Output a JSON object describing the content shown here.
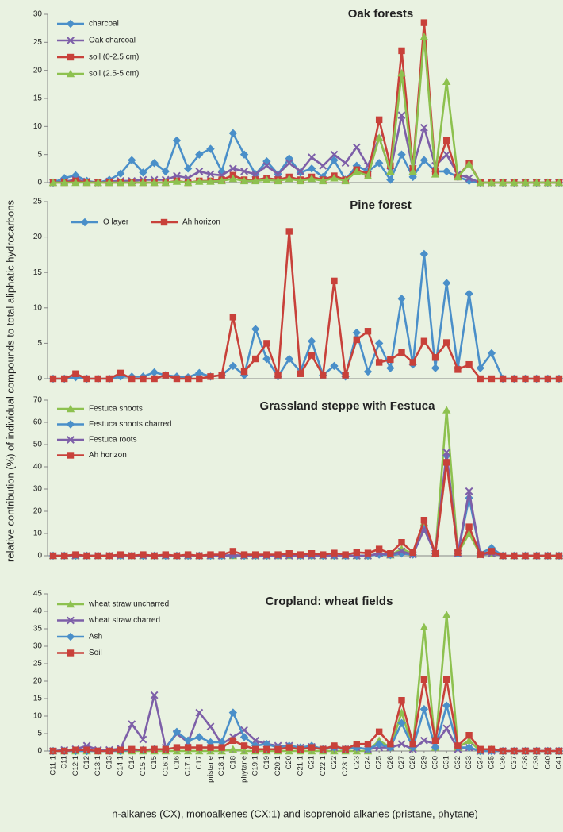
{
  "chart_data": [
    {
      "type": "line",
      "title": "Oak forests",
      "ylabel": "relative contribution (%) of individual compounds to total aliphatic hydrocarbons",
      "ylim": [
        0,
        30
      ],
      "yticks": [
        0,
        5,
        10,
        15,
        20,
        25,
        30
      ],
      "legend": "upper left",
      "series": [
        {
          "name": "charcoal",
          "color": "#4a8fc9",
          "marker": "diamond",
          "values": [
            0,
            0.8,
            1.3,
            0.3,
            0,
            0.5,
            1.6,
            4,
            1.8,
            3.5,
            2,
            7.5,
            2.5,
            5,
            6,
            2,
            8.8,
            5,
            1.5,
            3.8,
            1.5,
            4.3,
            1.8,
            2.5,
            1,
            4,
            0.5,
            3,
            2,
            3.5,
            0.5,
            5,
            1,
            4,
            2,
            2,
            1,
            0.3,
            0,
            0,
            0,
            0,
            0,
            0,
            0,
            0
          ]
        },
        {
          "name": "Oak charcoal",
          "color": "#7d5fa8",
          "marker": "x",
          "values": [
            0,
            0.2,
            0.5,
            0.2,
            0,
            0.2,
            0.3,
            0.3,
            0.5,
            0.5,
            0.5,
            1.2,
            0.8,
            2,
            1.5,
            1.3,
            2.5,
            2,
            1.5,
            3,
            1.5,
            3.5,
            2,
            4.5,
            3,
            5,
            3.5,
            6.3,
            3,
            8,
            2,
            12,
            2.5,
            9.8,
            3,
            5,
            1.5,
            0.8,
            0,
            0,
            0,
            0,
            0,
            0,
            0,
            0
          ]
        },
        {
          "name": "soil (0-2.5 cm)",
          "color": "#c8413a",
          "marker": "square",
          "values": [
            0,
            0,
            0.3,
            0,
            0,
            0,
            0,
            0,
            0,
            0,
            0,
            0.3,
            0,
            0.3,
            0.3,
            0.5,
            1.3,
            0.5,
            0.5,
            0.8,
            0.5,
            1,
            0.5,
            1,
            0.5,
            1.2,
            0.5,
            2.3,
            1.5,
            11.2,
            3,
            23.5,
            2.5,
            28.5,
            2,
            7.5,
            1,
            3.5,
            0,
            0,
            0,
            0,
            0,
            0,
            0,
            0
          ]
        },
        {
          "name": "soil (2.5-5 cm)",
          "color": "#8dc14f",
          "marker": "triangle",
          "values": [
            0,
            0,
            0,
            0,
            0,
            0,
            0,
            0,
            0,
            0,
            0,
            0.2,
            0,
            0.2,
            0.2,
            0.3,
            0.7,
            0.3,
            0.3,
            0.5,
            0.3,
            0.7,
            0.3,
            0.7,
            0.3,
            0.8,
            0.3,
            2,
            1.2,
            8,
            2,
            19.5,
            2,
            26,
            1.5,
            18,
            1,
            3.3,
            0,
            0,
            0,
            0,
            0,
            0,
            0,
            0
          ]
        }
      ]
    },
    {
      "type": "line",
      "title": "Pine forest",
      "ylim": [
        0,
        25
      ],
      "yticks": [
        0,
        5,
        10,
        15,
        20,
        25
      ],
      "legend": "upper left",
      "series": [
        {
          "name": "O layer",
          "color": "#4a8fc9",
          "marker": "diamond",
          "values": [
            0,
            0,
            0.2,
            0,
            0,
            0,
            0.3,
            0.3,
            0.3,
            0.9,
            0.5,
            0.3,
            0.2,
            0.8,
            0.3,
            0.5,
            1.8,
            0.5,
            7,
            2.8,
            0.3,
            2.8,
            1,
            5.3,
            0.5,
            1.8,
            0.3,
            6.5,
            1,
            5,
            1.5,
            11.3,
            2,
            17.6,
            1.5,
            13.5,
            1.5,
            12,
            1.5,
            3.6,
            0,
            0,
            0,
            0,
            0,
            0
          ]
        },
        {
          "name": "Ah horizon",
          "color": "#c8413a",
          "marker": "square",
          "values": [
            0,
            0,
            0.7,
            0,
            0,
            0,
            0.8,
            0,
            0,
            0,
            0.5,
            0,
            0,
            0,
            0.3,
            0.5,
            8.7,
            1,
            2.8,
            5,
            0.5,
            20.8,
            0.7,
            3.3,
            0.5,
            13.8,
            0.5,
            5.5,
            6.7,
            2.3,
            2.7,
            3.7,
            2.3,
            5.3,
            3,
            5.1,
            1.3,
            2,
            0,
            0,
            0,
            0,
            0,
            0,
            0,
            0
          ]
        }
      ]
    },
    {
      "type": "line",
      "title": "Grassland steppe with Festuca",
      "ylim": [
        0,
        70
      ],
      "yticks": [
        0,
        10,
        20,
        30,
        40,
        50,
        60,
        70
      ],
      "legend": "upper left",
      "series": [
        {
          "name": "Festuca shoots",
          "color": "#8dc14f",
          "marker": "triangle",
          "values": [
            0,
            0,
            0,
            0,
            0,
            0,
            0,
            0,
            0,
            0,
            0,
            0,
            0,
            0,
            0,
            0,
            0,
            0,
            0,
            0,
            0,
            0,
            0,
            0,
            0,
            0,
            0,
            0,
            0,
            1,
            0.3,
            3,
            1,
            15,
            1,
            65.5,
            1,
            10,
            0.5,
            1,
            0,
            0,
            0,
            0,
            0,
            0
          ]
        },
        {
          "name": "Festuca shoots charred",
          "color": "#4a8fc9",
          "marker": "diamond",
          "values": [
            0,
            0,
            0,
            0,
            0,
            0,
            0,
            0,
            0,
            0,
            0,
            0,
            0,
            0,
            0,
            0,
            0.3,
            0,
            0,
            0,
            0,
            0.3,
            0,
            0,
            0,
            0,
            0,
            0,
            0,
            0.5,
            0.3,
            1,
            0.5,
            12,
            1,
            45,
            1,
            26,
            1,
            3.5,
            0,
            0,
            0,
            0,
            0,
            0
          ]
        },
        {
          "name": "Festuca roots",
          "color": "#7d5fa8",
          "marker": "x",
          "values": [
            0,
            0,
            0,
            0,
            0,
            0,
            0,
            0,
            0,
            0,
            0,
            0,
            0,
            0,
            0,
            0,
            0.3,
            0,
            0,
            0,
            0,
            0,
            0,
            0,
            0,
            0,
            0,
            0,
            0,
            1,
            0.5,
            2,
            0.5,
            12,
            1,
            46.5,
            1,
            29,
            0.5,
            1,
            0,
            0,
            0,
            0,
            0,
            0
          ]
        },
        {
          "name": "Ah horizon",
          "color": "#c8413a",
          "marker": "square",
          "values": [
            0,
            0,
            0.5,
            0,
            0,
            0,
            0.5,
            0,
            0.5,
            0,
            0.5,
            0,
            0.5,
            0,
            0.5,
            0.5,
            2,
            0.5,
            0.5,
            0.5,
            0.5,
            1,
            0.5,
            1,
            0.5,
            1.2,
            0.5,
            1.5,
            1.2,
            3,
            1,
            6,
            1.5,
            16,
            1,
            42,
            1.5,
            13,
            0.5,
            2,
            0,
            0,
            0,
            0,
            0,
            0
          ]
        }
      ]
    },
    {
      "type": "line",
      "title": "Cropland: wheat fields",
      "ylim": [
        0,
        45
      ],
      "yticks": [
        0,
        5,
        10,
        15,
        20,
        25,
        30,
        35,
        40,
        45
      ],
      "legend": "upper left",
      "xlabel": "n-alkanes (CX), monoalkenes (CX:1) and isoprenoid alkanes (pristane, phytane)",
      "categories": [
        "C11:1",
        "C11",
        "C12:1",
        "C12",
        "C13:1",
        "C13",
        "C14:1",
        "C14",
        "C15:1",
        "C15",
        "C16:1",
        "C16",
        "C17:1",
        "C17",
        "pristane",
        "C18:1",
        "C18",
        "phytane",
        "C19:1",
        "C19",
        "C20:1",
        "C20",
        "C21:1",
        "C21",
        "C22:1",
        "C22",
        "C23:1",
        "C23",
        "C24",
        "C25",
        "C26",
        "C27",
        "C28",
        "C29",
        "C30",
        "C31",
        "C32",
        "C33",
        "C34",
        "C35",
        "C36",
        "C37",
        "C38",
        "C39",
        "C40",
        "C41"
      ],
      "series": [
        {
          "name": "wheat straw uncharred",
          "color": "#8dc14f",
          "marker": "triangle",
          "values": [
            0,
            0,
            0,
            0,
            0,
            0,
            0,
            0,
            0,
            0,
            0,
            0,
            0,
            0,
            0,
            0,
            0.5,
            0,
            0,
            0,
            0,
            0,
            0,
            0,
            0,
            0,
            0,
            0,
            0,
            3,
            1,
            11,
            1,
            35.5,
            1,
            39,
            1,
            3,
            0,
            0.5,
            0,
            0,
            0,
            0,
            0,
            0
          ]
        },
        {
          "name": "wheat straw charred",
          "color": "#7d5fa8",
          "marker": "x",
          "values": [
            0,
            0.3,
            0.5,
            1.5,
            0.3,
            0.3,
            0.7,
            7.7,
            3.3,
            16,
            1,
            5,
            2.5,
            11,
            7,
            2,
            4,
            6,
            3,
            2,
            1.5,
            1.5,
            1,
            1.2,
            0.5,
            1,
            0.5,
            1,
            0.5,
            1,
            1,
            2,
            0.5,
            3,
            2,
            6.5,
            0.5,
            1,
            0,
            0,
            0,
            0,
            0,
            0,
            0,
            0
          ]
        },
        {
          "name": "Ash",
          "color": "#4a8fc9",
          "marker": "diamond",
          "values": [
            0,
            0,
            0,
            0,
            0,
            0,
            0,
            0.3,
            0.3,
            0.5,
            0.5,
            5.5,
            3,
            4,
            2.5,
            2.5,
            11,
            4,
            1.5,
            2,
            1,
            1.5,
            1,
            1.5,
            0.5,
            1,
            0.5,
            1,
            0.5,
            2,
            1,
            8,
            1,
            12,
            1,
            13,
            1,
            1,
            0,
            0,
            0,
            0,
            0,
            0,
            0,
            0
          ]
        },
        {
          "name": "Soil",
          "color": "#c8413a",
          "marker": "square",
          "values": [
            0,
            0,
            0.3,
            0.3,
            0,
            0,
            0.3,
            0.5,
            0.3,
            0.5,
            0.5,
            1,
            1,
            1,
            1,
            1,
            3,
            1.5,
            0.5,
            0.5,
            0.5,
            1,
            0.5,
            1,
            0.5,
            1.5,
            0.5,
            2,
            2,
            5.5,
            2,
            14.5,
            2,
            20.5,
            3,
            20.5,
            1.5,
            4.5,
            0.5,
            0.5,
            0,
            0,
            0,
            0,
            0,
            0
          ]
        }
      ]
    }
  ]
}
